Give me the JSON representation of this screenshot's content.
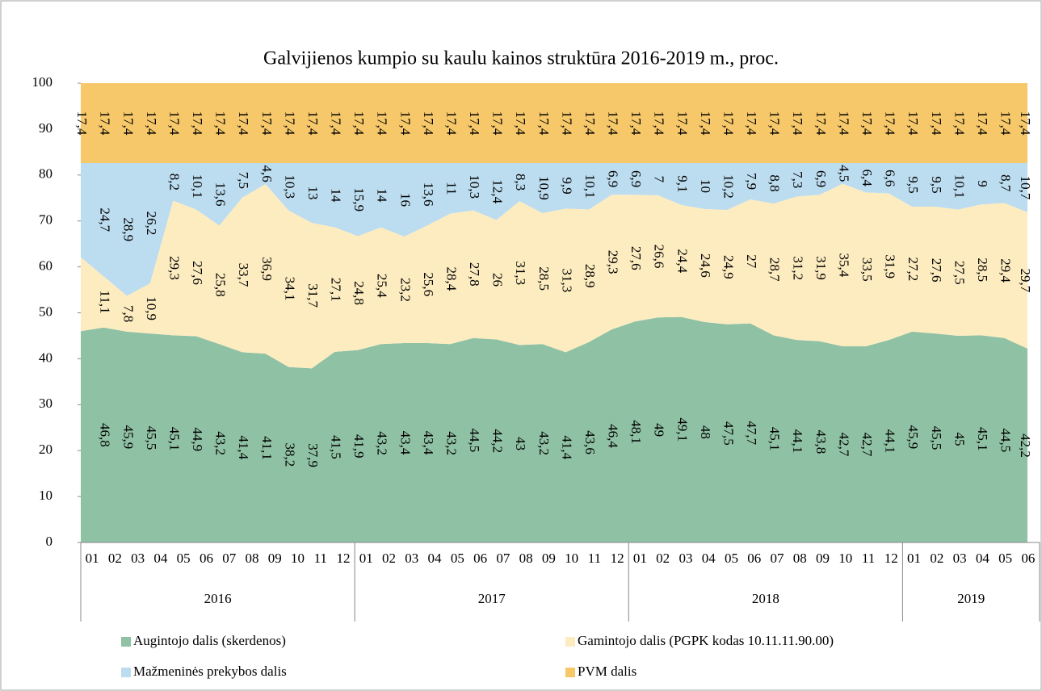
{
  "chart_data": {
    "type": "stacked_area",
    "title": "Galvijienos kumpio su kaulu kainos struktūra 2016-2019 m., proc.",
    "year_groups": [
      {
        "name": "2016",
        "months": [
          "01",
          "02",
          "03",
          "04",
          "05",
          "06",
          "07",
          "08",
          "09",
          "10",
          "11",
          "12"
        ]
      },
      {
        "name": "2017",
        "months": [
          "01",
          "02",
          "03",
          "04",
          "05",
          "06",
          "07",
          "08",
          "09",
          "10",
          "11",
          "12"
        ]
      },
      {
        "name": "2018",
        "months": [
          "01",
          "02",
          "03",
          "04",
          "05",
          "06",
          "07",
          "08",
          "09",
          "10",
          "11",
          "12"
        ]
      },
      {
        "name": "2019",
        "months": [
          "01",
          "02",
          "03",
          "04",
          "05",
          "06"
        ]
      }
    ],
    "ylim": [
      0,
      100
    ],
    "yticks": [
      0,
      10,
      20,
      30,
      40,
      50,
      60,
      70,
      80,
      90,
      100
    ],
    "legend": "bottom",
    "series": [
      {
        "name": "Augintojo dalis (skerdenos)",
        "color": "#8fc1a4",
        "values": [
          46.0,
          46.8,
          45.9,
          45.5,
          45.1,
          44.9,
          43.2,
          41.4,
          41.1,
          38.2,
          37.9,
          41.5,
          41.9,
          43.2,
          43.4,
          43.4,
          43.2,
          44.5,
          44.2,
          43,
          43.2,
          41.4,
          43.6,
          46.4,
          48.1,
          49,
          49.1,
          48,
          47.5,
          47.7,
          45.1,
          44.1,
          43.8,
          42.7,
          42.7,
          44.1,
          45.9,
          45.5,
          45,
          45.1,
          44.5,
          42.2
        ],
        "value_labels": [
          null,
          "46,8",
          "45,9",
          "45,5",
          "45,1",
          "44,9",
          "43,2",
          "41,4",
          "41,1",
          "38,2",
          "37,9",
          "41,5",
          "41,9",
          "43,2",
          "43,4",
          "43,4",
          "43,2",
          "44,5",
          "44,2",
          "43",
          "43,2",
          "41,4",
          "43,6",
          "46,4",
          "48,1",
          "49",
          "49,1",
          "48",
          "47,5",
          "47,7",
          "45,1",
          "44,1",
          "43,8",
          "42,7",
          "42,7",
          "44,1",
          "45,9",
          "45,5",
          "45",
          "45,1",
          "44,5",
          "42,2"
        ]
      },
      {
        "name": "Gamintojo dalis (PGPK kodas 10.11.11.90.00)",
        "color": "#fdecc0",
        "values": [
          16.1,
          11.1,
          7.8,
          10.9,
          29.3,
          27.6,
          25.8,
          33.7,
          36.9,
          34.1,
          31.7,
          27.1,
          24.8,
          25.4,
          23.2,
          25.6,
          28.4,
          27.8,
          26,
          31.3,
          28.5,
          31.3,
          28.9,
          29.3,
          27.6,
          26.6,
          24.4,
          24.6,
          24.9,
          27,
          28.7,
          31.2,
          31.9,
          35.4,
          33.5,
          31.9,
          27.2,
          27.6,
          27.5,
          28.5,
          29.4,
          29.7
        ],
        "value_labels": [
          null,
          "11,1",
          "7,8",
          "10,9",
          "29,3",
          "27,6",
          "25,8",
          "33,7",
          "36,9",
          "34,1",
          "31,7",
          "27,1",
          "24,8",
          "25,4",
          "23,2",
          "25,6",
          "28,4",
          "27,8",
          "26",
          "31,3",
          "28,5",
          "31,3",
          "28,9",
          "29,3",
          "27,6",
          "26,6",
          "24,4",
          "24,6",
          "24,9",
          "27",
          "28,7",
          "31,2",
          "31,9",
          "35,4",
          "33,5",
          "31,9",
          "27,2",
          "27,6",
          "27,5",
          "28,5",
          "29,4",
          "29,7"
        ]
      },
      {
        "name": "Mažmeninės prekybos dalis",
        "color": "#bcdcef",
        "values": [
          20.5,
          24.7,
          28.9,
          26.2,
          8.2,
          10.1,
          13.6,
          7.5,
          4.6,
          10.3,
          13,
          14,
          15.9,
          14,
          16,
          13.6,
          11,
          10.3,
          12.4,
          8.3,
          10.9,
          9.9,
          10.1,
          6.9,
          6.9,
          7,
          9.1,
          10,
          10.2,
          7.9,
          8.8,
          7.3,
          6.9,
          4.5,
          6.4,
          6.6,
          9.5,
          9.5,
          10.1,
          9,
          8.7,
          10.7
        ],
        "value_labels": [
          null,
          "24,7",
          "28,9",
          "26,2",
          "8,2",
          "10,1",
          "13,6",
          "7,5",
          "4,6",
          "10,3",
          "13",
          "14",
          "15,9",
          "14",
          "16",
          "13,6",
          "11",
          "10,3",
          "12,4",
          "8,3",
          "10,9",
          "9,9",
          "10,1",
          "6,9",
          "6,9",
          "7",
          "9,1",
          "10",
          "10,2",
          "7,9",
          "8,8",
          "7,3",
          "6,9",
          "4,5",
          "6,4",
          "6,6",
          "9,5",
          "9,5",
          "10,1",
          "9",
          "8,7",
          "10,7"
        ]
      },
      {
        "name": "PVM dalis",
        "color": "#f6c86a",
        "values": [
          17.4,
          17.4,
          17.4,
          17.4,
          17.4,
          17.4,
          17.4,
          17.4,
          17.4,
          17.4,
          17.4,
          17.4,
          17.4,
          17.4,
          17.4,
          17.4,
          17.4,
          17.4,
          17.4,
          17.4,
          17.4,
          17.4,
          17.4,
          17.4,
          17.4,
          17.4,
          17.4,
          17.4,
          17.4,
          17.4,
          17.4,
          17.4,
          17.4,
          17.4,
          17.4,
          17.4,
          17.4,
          17.4,
          17.4,
          17.4,
          17.4,
          17.4
        ],
        "value_labels": [
          "17,4",
          "17,4",
          "17,4",
          "17,4",
          "17,4",
          "17,4",
          "17,4",
          "17,4",
          "17,4",
          "17,4",
          "17,4",
          "17,4",
          "17,4",
          "17,4",
          "17,4",
          "17,4",
          "17,4",
          "17,4",
          "17,4",
          "17,4",
          "17,4",
          "17,4",
          "17,4",
          "17,4",
          "17,4",
          "17,4",
          "17,4",
          "17,4",
          "17,4",
          "17,4",
          "17,4",
          "17,4",
          "17,4",
          "17,4",
          "17,4",
          "17,4",
          "17,4",
          "17,4",
          "17,4",
          "17,4",
          "17,4",
          "17,4"
        ]
      }
    ]
  }
}
